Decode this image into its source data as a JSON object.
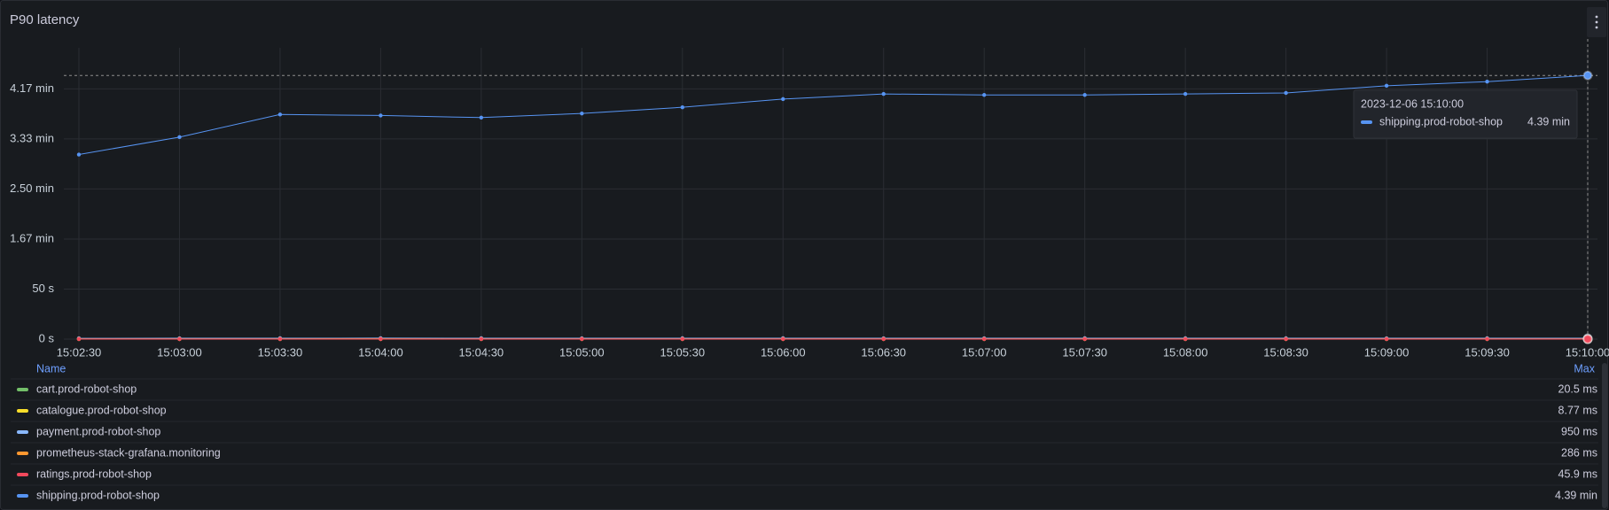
{
  "chart_data": {
    "type": "line",
    "title": "P90 latency",
    "categories": [
      "15:02:30",
      "15:03:00",
      "15:03:30",
      "15:04:00",
      "15:04:30",
      "15:05:00",
      "15:05:30",
      "15:06:00",
      "15:06:30",
      "15:07:00",
      "15:07:30",
      "15:08:00",
      "15:08:30",
      "15:09:00",
      "15:09:30",
      "15:10:00"
    ],
    "ylim": [
      0,
      291
    ],
    "yticks": [
      {
        "value": 0,
        "label": "0 s"
      },
      {
        "value": 50,
        "label": "50 s"
      },
      {
        "value": 100,
        "label": "1.67 min"
      },
      {
        "value": 150,
        "label": "2.50 min"
      },
      {
        "value": 200,
        "label": "3.33 min"
      },
      {
        "value": 250,
        "label": "4.17 min"
      }
    ],
    "grid": true,
    "legend_header": [
      "Name",
      "Max"
    ],
    "series": [
      {
        "name": "cart.prod-robot-shop",
        "color": "#73bf69",
        "values": [
          0.018,
          0.019,
          0.0205,
          0.017,
          0.016,
          0.018,
          0.019,
          0.017,
          0.016,
          0.018,
          0.019,
          0.018,
          0.017,
          0.016,
          0.018,
          0.019
        ],
        "max": 0.0205,
        "max_label": "20.5 ms"
      },
      {
        "name": "catalogue.prod-robot-shop",
        "color": "#fade2a",
        "values": [
          0.007,
          0.008,
          0.00877,
          0.007,
          0.008,
          0.007,
          0.008,
          0.007,
          0.008,
          0.007,
          0.008,
          0.007,
          0.008,
          0.007,
          0.008,
          0.007
        ],
        "max": 0.00877,
        "max_label": "8.77 ms"
      },
      {
        "name": "payment.prod-robot-shop",
        "color": "#8ab8ff",
        "values": [
          0.8,
          0.85,
          0.9,
          0.95,
          0.9,
          0.85,
          0.88,
          0.9,
          0.87,
          0.86,
          0.9,
          0.89,
          0.88,
          0.87,
          0.9,
          0.92
        ],
        "max": 0.95,
        "max_label": "950 ms"
      },
      {
        "name": "prometheus-stack-grafana.monitoring",
        "color": "#ff9830",
        "values": [
          0.25,
          0.26,
          0.27,
          0.286,
          0.27,
          0.26,
          0.25,
          0.26,
          0.27,
          0.26,
          0.25,
          0.26,
          0.27,
          0.26,
          0.25,
          0.26
        ],
        "max": 0.286,
        "max_label": "286 ms"
      },
      {
        "name": "ratings.prod-robot-shop",
        "color": "#f2495c",
        "values": [
          0.04,
          0.042,
          0.0459,
          0.041,
          0.04,
          0.042,
          0.043,
          0.041,
          0.04,
          0.042,
          0.041,
          0.04,
          0.042,
          0.041,
          0.04,
          0.042
        ],
        "max": 0.0459,
        "max_label": "45.9 ms"
      },
      {
        "name": "shipping.prod-robot-shop",
        "color": "#5794f2",
        "values": [
          184.4,
          201.8,
          224.4,
          223.4,
          221.3,
          225.4,
          231.6,
          239.8,
          244.9,
          243.9,
          243.9,
          244.9,
          245.9,
          253.1,
          257.2,
          263.4
        ],
        "max": 263.4,
        "max_label": "4.39 min"
      }
    ],
    "tooltip": {
      "time": "2023-12-06 15:10:00",
      "value": 263.4,
      "value_label": "4.39 min"
    }
  }
}
